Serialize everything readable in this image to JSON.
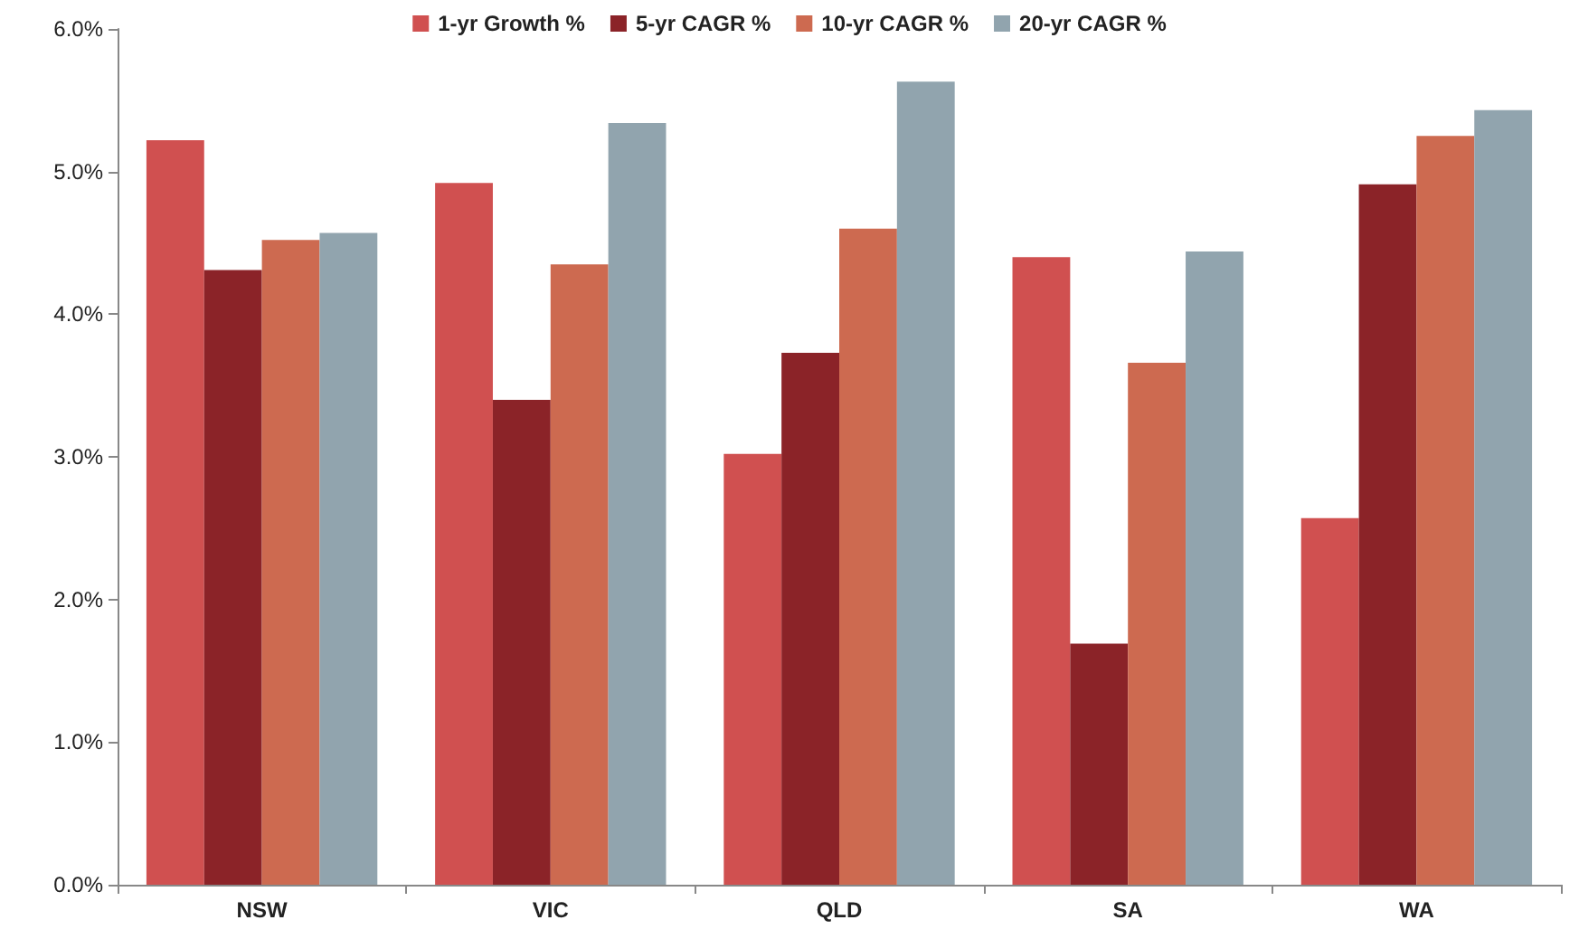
{
  "chart_data": {
    "type": "bar",
    "categories": [
      "NSW",
      "VIC",
      "QLD",
      "SA",
      "WA"
    ],
    "series": [
      {
        "name": "1-yr Growth %",
        "color": "#d05050",
        "values": [
          5.22,
          4.92,
          3.02,
          4.4,
          2.57
        ]
      },
      {
        "name": "5-yr CAGR %",
        "color": "#8b2328",
        "values": [
          4.31,
          3.4,
          3.73,
          1.69,
          4.91
        ]
      },
      {
        "name": "10-yr CAGR %",
        "color": "#cd6a50",
        "values": [
          4.52,
          4.35,
          4.6,
          3.66,
          5.25
        ]
      },
      {
        "name": "20-yr CAGR %",
        "color": "#91a4ae",
        "values": [
          4.57,
          5.34,
          5.63,
          4.44,
          5.43
        ]
      }
    ],
    "ylim": [
      0,
      6
    ],
    "yticks": [
      {
        "value": 0,
        "label": "0.0%"
      },
      {
        "value": 1,
        "label": "1.0%"
      },
      {
        "value": 2,
        "label": "2.0%"
      },
      {
        "value": 3,
        "label": "3.0%"
      },
      {
        "value": 4,
        "label": "4.0%"
      },
      {
        "value": 5,
        "label": "5.0%"
      },
      {
        "value": 6,
        "label": "6.0%"
      }
    ],
    "grid": false,
    "legend": "top"
  }
}
